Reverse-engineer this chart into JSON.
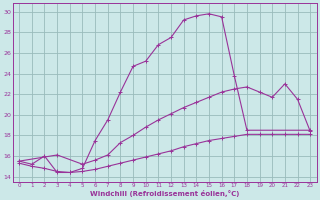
{
  "xlabel": "Windchill (Refroidissement éolien,°C)",
  "background_color": "#cce8e8",
  "line_color": "#993399",
  "grid_color": "#99bbbb",
  "xlim": [
    -0.5,
    23.5
  ],
  "ylim": [
    13.5,
    30.8
  ],
  "xticks": [
    0,
    1,
    2,
    3,
    4,
    5,
    6,
    7,
    8,
    9,
    10,
    11,
    12,
    13,
    14,
    15,
    16,
    17,
    18,
    19,
    20,
    21,
    22,
    23
  ],
  "yticks": [
    14,
    16,
    18,
    20,
    22,
    24,
    26,
    28,
    30
  ],
  "line1_x": [
    0,
    1,
    2,
    3,
    4,
    5,
    6,
    7,
    8,
    9,
    10,
    11,
    12,
    13,
    14,
    15,
    16,
    17,
    18,
    23
  ],
  "line1_y": [
    15.5,
    15.2,
    16.0,
    14.4,
    14.4,
    14.8,
    17.5,
    19.5,
    22.2,
    24.7,
    25.2,
    26.8,
    27.5,
    29.2,
    29.6,
    29.8,
    29.5,
    23.8,
    18.5,
    18.5
  ],
  "line2_x": [
    0,
    3,
    5,
    6,
    7,
    8,
    9,
    10,
    11,
    12,
    13,
    14,
    15,
    16,
    17,
    18,
    19,
    20,
    21,
    22,
    23
  ],
  "line2_y": [
    15.5,
    16.1,
    15.2,
    15.6,
    16.1,
    17.3,
    18.0,
    18.8,
    19.5,
    20.1,
    20.7,
    21.2,
    21.7,
    22.2,
    22.5,
    22.7,
    22.2,
    21.7,
    23.0,
    21.5,
    18.4
  ],
  "line3_x": [
    0,
    1,
    2,
    3,
    4,
    5,
    6,
    7,
    8,
    9,
    10,
    11,
    12,
    13,
    14,
    15,
    16,
    17,
    18,
    19,
    20,
    21,
    22,
    23
  ],
  "line3_y": [
    15.3,
    15.0,
    14.8,
    14.5,
    14.4,
    14.5,
    14.7,
    15.0,
    15.3,
    15.6,
    15.9,
    16.2,
    16.5,
    16.9,
    17.2,
    17.5,
    17.7,
    17.9,
    18.1,
    18.1,
    18.1,
    18.1,
    18.1,
    18.1
  ]
}
